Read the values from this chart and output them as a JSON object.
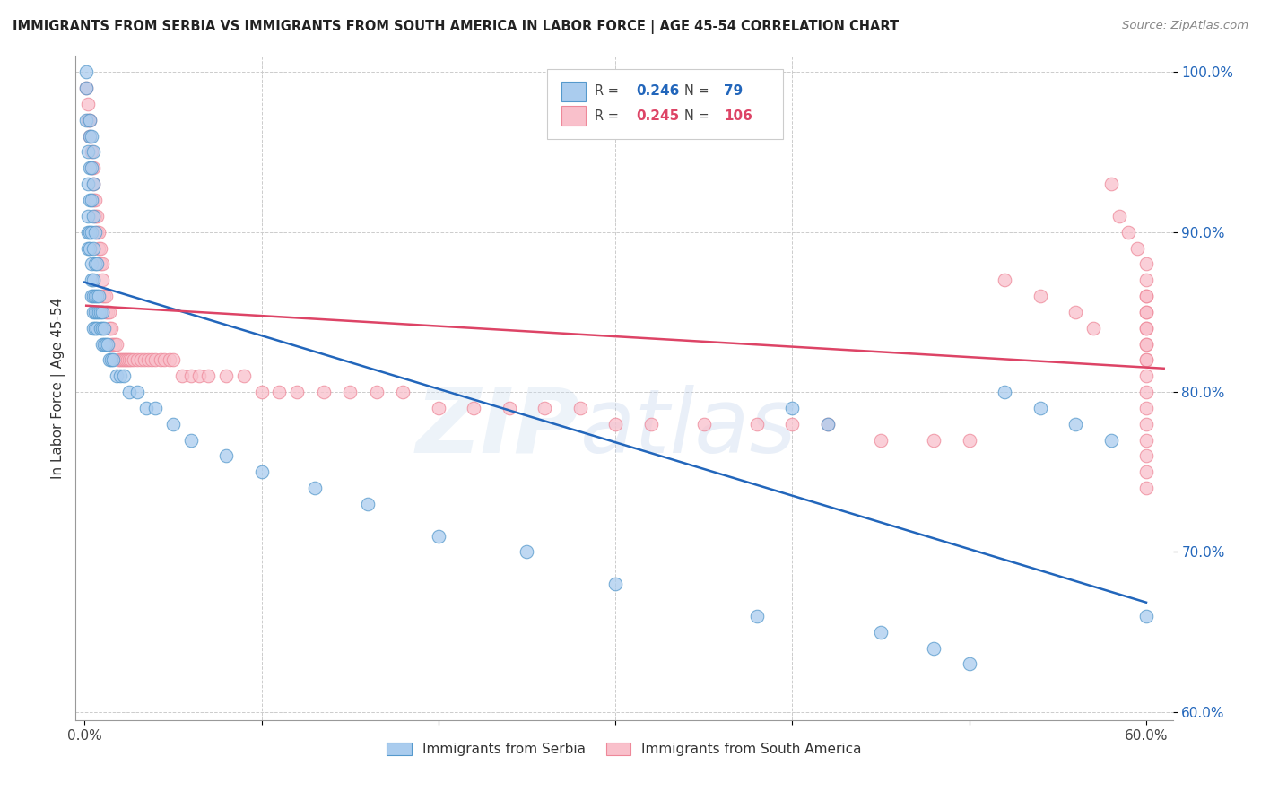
{
  "title": "IMMIGRANTS FROM SERBIA VS IMMIGRANTS FROM SOUTH AMERICA IN LABOR FORCE | AGE 45-54 CORRELATION CHART",
  "source": "Source: ZipAtlas.com",
  "xlabel_blue": "Immigrants from Serbia",
  "xlabel_pink": "Immigrants from South America",
  "ylabel": "In Labor Force | Age 45-54",
  "legend_blue_r": "0.246",
  "legend_blue_n": "79",
  "legend_pink_r": "0.245",
  "legend_pink_n": "106",
  "xlim": [
    -0.005,
    0.615
  ],
  "ylim": [
    0.595,
    1.01
  ],
  "yticks": [
    0.6,
    0.7,
    0.8,
    0.9,
    1.0
  ],
  "ytick_labels": [
    "60.0%",
    "70.0%",
    "80.0%",
    "90.0%",
    "100.0%"
  ],
  "xtick_left": 0.0,
  "xtick_right": 0.6,
  "xtick_left_label": "0.0%",
  "xtick_right_label": "60.0%",
  "blue_color": "#aaccee",
  "pink_color": "#f9c0cb",
  "blue_edge_color": "#5599cc",
  "pink_edge_color": "#ee8899",
  "blue_line_color": "#2266bb",
  "pink_line_color": "#dd4466",
  "watermark": "ZIPatlas",
  "blue_scatter_x": [
    0.001,
    0.001,
    0.001,
    0.002,
    0.002,
    0.002,
    0.002,
    0.002,
    0.003,
    0.003,
    0.003,
    0.003,
    0.003,
    0.003,
    0.004,
    0.004,
    0.004,
    0.004,
    0.004,
    0.004,
    0.004,
    0.005,
    0.005,
    0.005,
    0.005,
    0.005,
    0.005,
    0.005,
    0.005,
    0.006,
    0.006,
    0.006,
    0.006,
    0.006,
    0.007,
    0.007,
    0.007,
    0.007,
    0.008,
    0.008,
    0.009,
    0.009,
    0.01,
    0.01,
    0.01,
    0.011,
    0.011,
    0.012,
    0.013,
    0.014,
    0.015,
    0.016,
    0.018,
    0.02,
    0.022,
    0.025,
    0.03,
    0.035,
    0.04,
    0.05,
    0.06,
    0.08,
    0.1,
    0.13,
    0.16,
    0.2,
    0.25,
    0.3,
    0.38,
    0.4,
    0.42,
    0.45,
    0.48,
    0.5,
    0.52,
    0.54,
    0.56,
    0.58,
    0.6
  ],
  "blue_scatter_y": [
    1.0,
    0.99,
    0.97,
    0.95,
    0.93,
    0.91,
    0.9,
    0.89,
    0.97,
    0.96,
    0.94,
    0.92,
    0.9,
    0.89,
    0.96,
    0.94,
    0.92,
    0.9,
    0.88,
    0.87,
    0.86,
    0.95,
    0.93,
    0.91,
    0.89,
    0.87,
    0.86,
    0.85,
    0.84,
    0.9,
    0.88,
    0.86,
    0.85,
    0.84,
    0.88,
    0.86,
    0.85,
    0.84,
    0.86,
    0.85,
    0.85,
    0.84,
    0.85,
    0.84,
    0.83,
    0.84,
    0.83,
    0.83,
    0.83,
    0.82,
    0.82,
    0.82,
    0.81,
    0.81,
    0.81,
    0.8,
    0.8,
    0.79,
    0.79,
    0.78,
    0.77,
    0.76,
    0.75,
    0.74,
    0.73,
    0.71,
    0.7,
    0.68,
    0.66,
    0.79,
    0.78,
    0.65,
    0.64,
    0.63,
    0.8,
    0.79,
    0.78,
    0.77,
    0.66
  ],
  "pink_scatter_x": [
    0.001,
    0.002,
    0.002,
    0.003,
    0.003,
    0.004,
    0.004,
    0.005,
    0.005,
    0.005,
    0.006,
    0.006,
    0.007,
    0.007,
    0.008,
    0.008,
    0.009,
    0.009,
    0.01,
    0.01,
    0.01,
    0.011,
    0.012,
    0.012,
    0.013,
    0.014,
    0.014,
    0.015,
    0.015,
    0.016,
    0.017,
    0.018,
    0.019,
    0.02,
    0.021,
    0.022,
    0.023,
    0.024,
    0.025,
    0.026,
    0.028,
    0.03,
    0.032,
    0.034,
    0.036,
    0.038,
    0.04,
    0.043,
    0.045,
    0.048,
    0.05,
    0.055,
    0.06,
    0.065,
    0.07,
    0.08,
    0.09,
    0.1,
    0.11,
    0.12,
    0.135,
    0.15,
    0.165,
    0.18,
    0.2,
    0.22,
    0.24,
    0.26,
    0.28,
    0.3,
    0.32,
    0.35,
    0.38,
    0.4,
    0.42,
    0.45,
    0.48,
    0.5,
    0.52,
    0.54,
    0.56,
    0.57,
    0.58,
    0.585,
    0.59,
    0.595,
    0.6,
    0.6,
    0.6,
    0.6,
    0.6,
    0.6,
    0.6,
    0.6,
    0.6,
    0.6,
    0.6,
    0.6,
    0.6,
    0.6,
    0.6,
    0.6,
    0.6,
    0.6,
    0.6,
    0.6
  ],
  "pink_scatter_y": [
    0.99,
    0.98,
    0.97,
    0.97,
    0.96,
    0.95,
    0.94,
    0.94,
    0.93,
    0.92,
    0.92,
    0.91,
    0.91,
    0.9,
    0.9,
    0.89,
    0.89,
    0.88,
    0.88,
    0.87,
    0.86,
    0.86,
    0.86,
    0.85,
    0.85,
    0.85,
    0.84,
    0.84,
    0.83,
    0.83,
    0.83,
    0.83,
    0.82,
    0.82,
    0.82,
    0.82,
    0.82,
    0.82,
    0.82,
    0.82,
    0.82,
    0.82,
    0.82,
    0.82,
    0.82,
    0.82,
    0.82,
    0.82,
    0.82,
    0.82,
    0.82,
    0.81,
    0.81,
    0.81,
    0.81,
    0.81,
    0.81,
    0.8,
    0.8,
    0.8,
    0.8,
    0.8,
    0.8,
    0.8,
    0.79,
    0.79,
    0.79,
    0.79,
    0.79,
    0.78,
    0.78,
    0.78,
    0.78,
    0.78,
    0.78,
    0.77,
    0.77,
    0.77,
    0.87,
    0.86,
    0.85,
    0.84,
    0.93,
    0.91,
    0.9,
    0.89,
    0.88,
    0.87,
    0.86,
    0.85,
    0.84,
    0.83,
    0.82,
    0.86,
    0.85,
    0.84,
    0.83,
    0.82,
    0.81,
    0.8,
    0.79,
    0.78,
    0.77,
    0.76,
    0.75,
    0.74
  ]
}
